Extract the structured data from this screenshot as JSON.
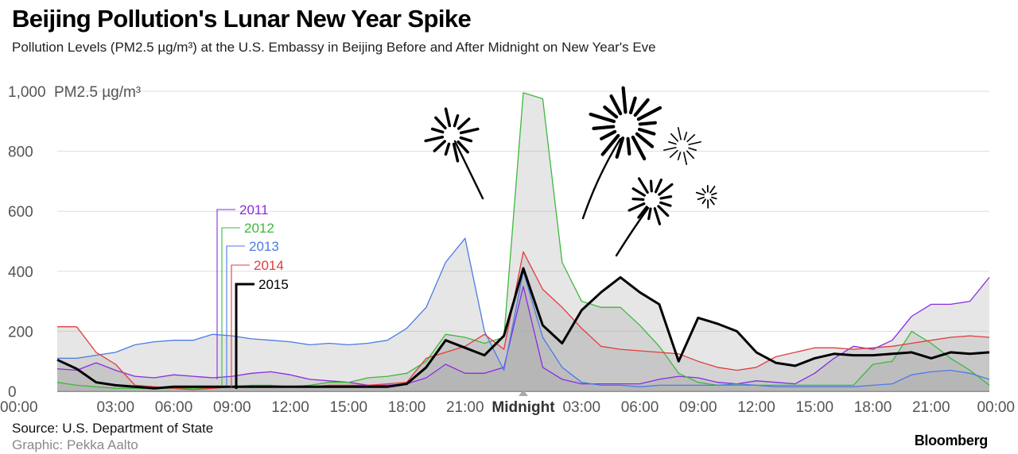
{
  "header": {
    "title": "Beijing Pollution's Lunar New Year Spike",
    "subtitle": "Pollution Levels (PM2.5 µg/m³) at the U.S. Embassy in Beijing Before and After Midnight on New Year's Eve"
  },
  "footer": {
    "source": "Source: U.S. Department of State",
    "credit": "Graphic: Pekka Aalto",
    "brand": "Bloomberg"
  },
  "colors": {
    "2011": "#8a2be2",
    "2012": "#3cb93c",
    "2013": "#4a7be6",
    "2014": "#e23c3c",
    "2015": "#000000",
    "grid": "#dddddd",
    "fill": "#a6a6a6"
  },
  "chart_data": {
    "type": "line",
    "ylabel": "PM2.5 µg/m³",
    "ylim": [
      0,
      1000
    ],
    "yticks": [
      {
        "value": 0,
        "label": "0"
      },
      {
        "value": 200,
        "label": "200"
      },
      {
        "value": 400,
        "label": "400"
      },
      {
        "value": 600,
        "label": "600"
      },
      {
        "value": 800,
        "label": "800"
      },
      {
        "value": 1000,
        "label": "1,000"
      }
    ],
    "xlim": [
      0,
      48
    ],
    "xticks": [
      {
        "value": 0,
        "label": "00:00"
      },
      {
        "value": 3,
        "label": "03:00"
      },
      {
        "value": 6,
        "label": "06:00"
      },
      {
        "value": 9,
        "label": "09:00"
      },
      {
        "value": 12,
        "label": "12:00"
      },
      {
        "value": 15,
        "label": "15:00"
      },
      {
        "value": 18,
        "label": "18:00"
      },
      {
        "value": 21,
        "label": "21:00"
      },
      {
        "value": 24,
        "label": "Midnight"
      },
      {
        "value": 27,
        "label": "03:00"
      },
      {
        "value": 30,
        "label": "06:00"
      },
      {
        "value": 33,
        "label": "09:00"
      },
      {
        "value": 36,
        "label": "12:00"
      },
      {
        "value": 39,
        "label": "15:00"
      },
      {
        "value": 42,
        "label": "18:00"
      },
      {
        "value": 45,
        "label": "21:00"
      },
      {
        "value": 48,
        "label": "00:00"
      }
    ],
    "x": [
      0,
      1,
      2,
      3,
      4,
      5,
      6,
      7,
      8,
      9,
      10,
      11,
      12,
      13,
      14,
      15,
      16,
      17,
      18,
      19,
      20,
      21,
      22,
      23,
      24,
      25,
      26,
      27,
      28,
      29,
      30,
      31,
      32,
      33,
      34,
      35,
      36,
      37,
      38,
      39,
      40,
      41,
      42,
      43,
      44,
      45,
      46,
      47,
      48
    ],
    "series": [
      {
        "name": "2011",
        "values": [
          75,
          70,
          95,
          70,
          50,
          45,
          55,
          50,
          45,
          50,
          60,
          65,
          55,
          40,
          35,
          30,
          20,
          20,
          25,
          45,
          90,
          60,
          60,
          80,
          350,
          80,
          40,
          25,
          25,
          25,
          25,
          40,
          50,
          45,
          30,
          25,
          35,
          30,
          25,
          60,
          110,
          150,
          140,
          170,
          250,
          290,
          290,
          300,
          380
        ]
      },
      {
        "name": "2012",
        "values": [
          30,
          20,
          15,
          10,
          10,
          10,
          10,
          10,
          10,
          15,
          20,
          20,
          15,
          20,
          30,
          30,
          45,
          50,
          60,
          100,
          190,
          180,
          160,
          180,
          995,
          975,
          430,
          300,
          280,
          280,
          220,
          150,
          60,
          30,
          20,
          20,
          20,
          20,
          20,
          20,
          20,
          20,
          90,
          100,
          200,
          160,
          110,
          70,
          20
        ]
      },
      {
        "name": "2013",
        "values": [
          110,
          110,
          120,
          130,
          155,
          165,
          170,
          170,
          190,
          185,
          175,
          170,
          165,
          155,
          160,
          155,
          160,
          170,
          210,
          280,
          430,
          510,
          200,
          70,
          400,
          180,
          80,
          30,
          20,
          20,
          15,
          20,
          20,
          20,
          20,
          25,
          20,
          15,
          15,
          15,
          15,
          15,
          20,
          25,
          55,
          65,
          70,
          60,
          40
        ]
      },
      {
        "name": "2014",
        "values": [
          215,
          215,
          130,
          90,
          20,
          15,
          10,
          5,
          10,
          15,
          15,
          15,
          15,
          15,
          20,
          20,
          20,
          25,
          30,
          110,
          130,
          150,
          190,
          140,
          465,
          340,
          280,
          210,
          150,
          140,
          135,
          130,
          125,
          100,
          80,
          70,
          80,
          115,
          130,
          145,
          145,
          140,
          145,
          150,
          160,
          170,
          180,
          185,
          180
        ]
      },
      {
        "name": "2015",
        "values": [
          105,
          75,
          30,
          20,
          15,
          10,
          15,
          15,
          15,
          15,
          15,
          15,
          15,
          15,
          15,
          15,
          15,
          15,
          25,
          80,
          170,
          145,
          120,
          185,
          410,
          220,
          160,
          270,
          330,
          380,
          330,
          290,
          100,
          245,
          225,
          200,
          130,
          95,
          85,
          110,
          125,
          120,
          120,
          125,
          130,
          110,
          130,
          125,
          130
        ]
      }
    ]
  }
}
